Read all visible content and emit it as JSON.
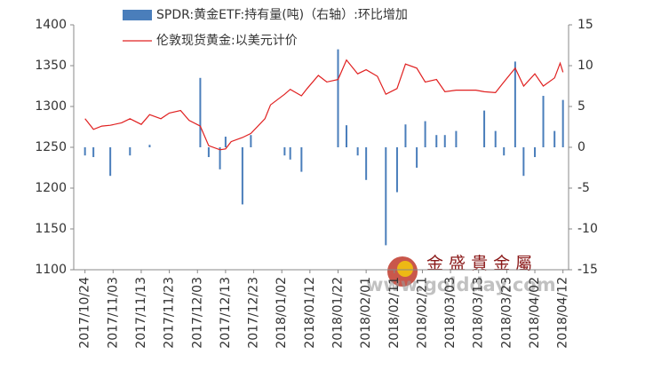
{
  "chart_data": {
    "type": "bar-line",
    "x": [
      "2017/10/24",
      "2017/10/27",
      "2017/10/30",
      "2017/11/02",
      "2017/11/06",
      "2017/11/09",
      "2017/11/13",
      "2017/11/16",
      "2017/11/20",
      "2017/11/23",
      "2017/11/27",
      "2017/11/30",
      "2017/12/04",
      "2017/12/07",
      "2017/12/11",
      "2017/12/13",
      "2017/12/15",
      "2017/12/19",
      "2017/12/22",
      "2017/12/27",
      "2017/12/29",
      "2018/01/03",
      "2018/01/05",
      "2018/01/09",
      "2018/01/11",
      "2018/01/15",
      "2018/01/18",
      "2018/01/22",
      "2018/01/25",
      "2018/01/29",
      "2018/02/01",
      "2018/02/05",
      "2018/02/08",
      "2018/02/12",
      "2018/02/15",
      "2018/02/19",
      "2018/02/22",
      "2018/02/26",
      "2018/03/01",
      "2018/03/05",
      "2018/03/08",
      "2018/03/12",
      "2018/03/15",
      "2018/03/19",
      "2018/03/22",
      "2018/03/26",
      "2018/03/29",
      "2018/04/02",
      "2018/04/05",
      "2018/04/09",
      "2018/04/11",
      "2018/04/12"
    ],
    "series": [
      {
        "name": "SPDR:黄金ETF:持有量(吨)（右轴）:环比增加",
        "kind": "bar",
        "axis": "y2",
        "color": "#4a7ebb",
        "values": [
          -1,
          -1.2,
          null,
          -3.5,
          null,
          -1,
          null,
          0.3,
          null,
          null,
          null,
          null,
          8.5,
          -1.2,
          -2.7,
          1.3,
          null,
          -7,
          1.5,
          null,
          null,
          -1,
          -1.5,
          -3,
          null,
          null,
          null,
          12,
          2.7,
          -1,
          -4,
          null,
          -12,
          -5.5,
          2.8,
          -2.5,
          3.2,
          1.5,
          1.5,
          2,
          null,
          null,
          4.5,
          2,
          -1,
          10.5,
          -3.5,
          -1.2,
          6.3,
          2,
          null,
          5.8
        ]
      },
      {
        "name": "伦敦现货黄金:以美元计价",
        "kind": "line",
        "color": "#e02020",
        "values": [
          1285,
          1272,
          1276,
          1277,
          1280,
          1285,
          1278,
          1290,
          1285,
          1292,
          1295,
          1283,
          1276,
          1252,
          1247,
          1248,
          1257,
          1262,
          1267,
          1285,
          1302,
          1315,
          1321,
          1313,
          1322,
          1338,
          1330,
          1333,
          1357,
          1340,
          1345,
          1337,
          1315,
          1322,
          1352,
          1347,
          1330,
          1333,
          1318,
          1320,
          1320,
          1320,
          1318,
          1317,
          1330,
          1347,
          1325,
          1340,
          1325,
          1335,
          1353,
          1342
        ]
      }
    ],
    "xlim": [
      "2017/10/20",
      "2018/04/14"
    ],
    "xticks": [
      "2017/10/24",
      "2017/11/03",
      "2017/11/13",
      "2017/11/23",
      "2017/12/03",
      "2017/12/13",
      "2017/12/23",
      "2018/01/02",
      "2018/01/12",
      "2018/01/22",
      "2018/02/01",
      "2018/02/11",
      "2018/02/21",
      "2018/03/03",
      "2018/03/13",
      "2018/03/23",
      "2018/04/02",
      "2018/04/12"
    ],
    "ylim": [
      1100,
      1400
    ],
    "yticks": [
      1100,
      1150,
      1200,
      1250,
      1300,
      1350,
      1400
    ],
    "y2lim": [
      -15,
      15
    ],
    "y2ticks": [
      -15,
      -10,
      -5,
      0,
      5,
      10,
      15
    ],
    "watermark_brand": "金 盛 貴 金 屬",
    "watermark_url": "www.goldday.com"
  }
}
